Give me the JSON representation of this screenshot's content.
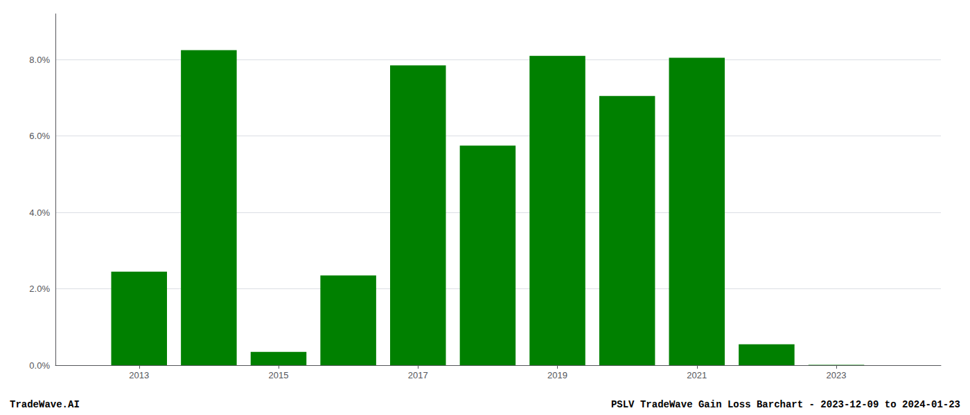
{
  "chart_data": {
    "type": "bar",
    "x": [
      2013,
      2014,
      2015,
      2016,
      2017,
      2018,
      2019,
      2020,
      2021,
      2022,
      2023
    ],
    "values": [
      0.0245,
      0.0825,
      0.0035,
      0.0235,
      0.0785,
      0.0575,
      0.081,
      0.0705,
      0.0805,
      0.0055,
      0.0001
    ],
    "color": "#008000",
    "xlim": [
      2011.8,
      2024.5
    ],
    "xticks": [
      2013,
      2015,
      2017,
      2019,
      2021,
      2023
    ],
    "ylim": [
      0,
      0.092
    ],
    "yticks": [
      {
        "value": 0.0,
        "label": "0.0%"
      },
      {
        "value": 0.02,
        "label": "2.0%"
      },
      {
        "value": 0.04,
        "label": "4.0%"
      },
      {
        "value": 0.06,
        "label": "6.0%"
      },
      {
        "value": 0.08,
        "label": "8.0%"
      }
    ],
    "grid": true,
    "annotations": [
      "TradeWave.AI",
      "PSLV TradeWave Gain Loss Barchart - 2023-12-09 to 2024-01-23"
    ]
  }
}
